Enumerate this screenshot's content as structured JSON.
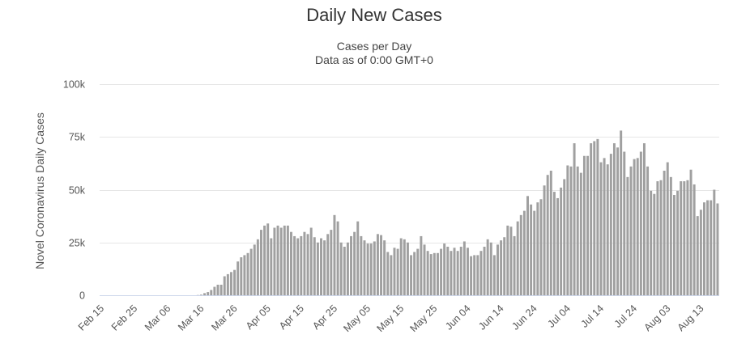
{
  "chart_data": {
    "type": "bar",
    "title": "Daily New Cases",
    "subtitle_lines": [
      "Cases per Day",
      "Data as of 0:00 GMT+0"
    ],
    "ylabel": "Novel Coronavirus Daily Cases",
    "xlabel": "",
    "ylim": [
      0,
      100000
    ],
    "y_ticks": [
      {
        "value": 0,
        "label": "0"
      },
      {
        "value": 25000,
        "label": "25k"
      },
      {
        "value": 50000,
        "label": "50k"
      },
      {
        "value": 75000,
        "label": "75k"
      },
      {
        "value": 100000,
        "label": "100k"
      }
    ],
    "x_tick_labels": [
      "Feb 15",
      "Feb 25",
      "Mar 06",
      "Mar 16",
      "Mar 26",
      "Apr 05",
      "Apr 15",
      "Apr 25",
      "May 05",
      "May 15",
      "May 25",
      "Jun 04",
      "Jun 14",
      "Jun 24",
      "Jul 04",
      "Jul 14",
      "Jul 24",
      "Aug 03",
      "Aug 13"
    ],
    "first_date": "Feb 15",
    "grid": true,
    "bar_color": "#a0a0a0",
    "values": [
      0,
      0,
      0,
      0,
      0,
      0,
      0,
      0,
      0,
      0,
      0,
      0,
      0,
      0,
      0,
      0,
      0,
      0,
      0,
      0,
      0,
      0,
      0,
      0,
      0,
      0,
      0,
      0,
      0,
      100,
      300,
      1000,
      1500,
      2500,
      4000,
      5000,
      5000,
      9000,
      10000,
      11000,
      12000,
      16000,
      18000,
      19000,
      20000,
      22000,
      24000,
      26500,
      31000,
      33000,
      34000,
      27000,
      32000,
      33000,
      32000,
      33000,
      33000,
      30000,
      28000,
      27000,
      28000,
      30000,
      29000,
      32000,
      27500,
      25000,
      27000,
      26000,
      29000,
      31000,
      38000,
      35000,
      25000,
      23000,
      25000,
      28000,
      30000,
      35000,
      28000,
      26000,
      24500,
      24500,
      25500,
      29000,
      28500,
      26000,
      20500,
      19000,
      22500,
      22000,
      27000,
      26500,
      25000,
      19000,
      20500,
      22000,
      28000,
      24000,
      21000,
      19500,
      20000,
      20000,
      22000,
      24500,
      23000,
      21000,
      22500,
      21000,
      23000,
      25500,
      22500,
      18500,
      19000,
      19000,
      21000,
      23000,
      26500,
      25000,
      19000,
      24000,
      26000,
      27500,
      33000,
      32500,
      28000,
      35000,
      38000,
      40000,
      47000,
      43000,
      40000,
      44000,
      45500,
      52000,
      57000,
      59000,
      49000,
      46000,
      51000,
      55000,
      61500,
      61000,
      72000,
      61000,
      58000,
      66000,
      66000,
      72000,
      73000,
      74000,
      63000,
      65000,
      62000,
      67000,
      72000,
      70000,
      78000,
      68000,
      56000,
      61000,
      64500,
      65000,
      68000,
      72000,
      61000,
      49500,
      48000,
      54000,
      54500,
      59000,
      63000,
      56000,
      47500,
      49500,
      54000,
      54000,
      54500,
      59500,
      52500,
      37500,
      40500,
      44000,
      45000,
      45000,
      50000,
      43500
    ]
  }
}
